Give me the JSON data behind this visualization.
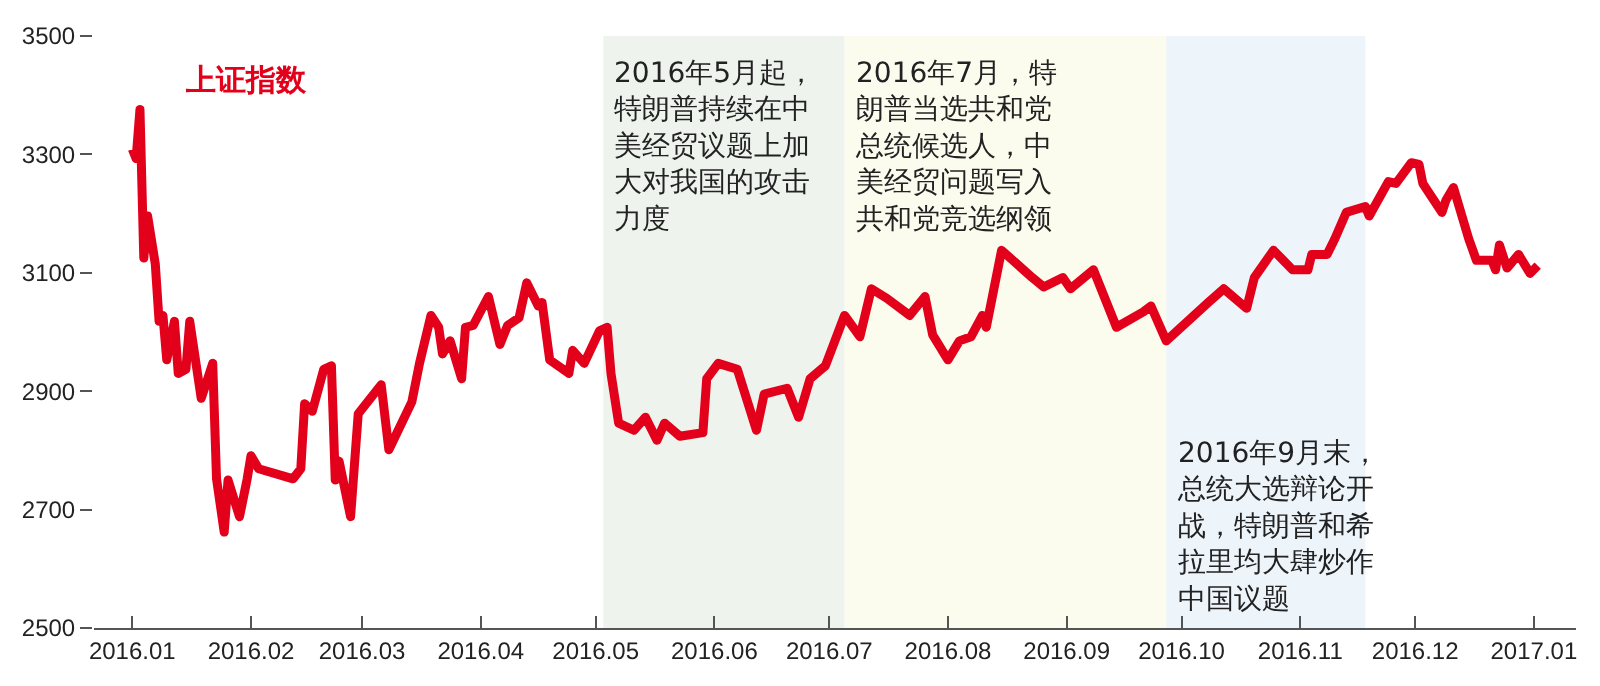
{
  "chart_data": {
    "type": "line",
    "x": [
      "2016-01-01",
      "2016-01-02",
      "2016-01-03",
      "2016-01-04",
      "2016-01-05",
      "2016-01-07",
      "2016-01-08",
      "2016-01-09",
      "2016-01-10",
      "2016-01-12",
      "2016-01-13",
      "2016-01-15",
      "2016-01-16",
      "2016-01-19",
      "2016-01-22",
      "2016-01-23",
      "2016-01-25",
      "2016-01-26",
      "2016-01-29",
      "2016-01-31",
      "2016-02-01",
      "2016-02-03",
      "2016-02-12",
      "2016-02-14",
      "2016-02-15",
      "2016-02-17",
      "2016-02-20",
      "2016-02-22",
      "2016-02-23",
      "2016-02-24",
      "2016-02-27",
      "2016-02-29",
      "2016-03-06",
      "2016-03-08",
      "2016-03-14",
      "2016-03-16",
      "2016-03-19",
      "2016-03-21",
      "2016-03-22",
      "2016-03-24",
      "2016-03-27",
      "2016-03-28",
      "2016-03-30",
      "2016-04-03",
      "2016-04-06",
      "2016-04-08",
      "2016-04-11",
      "2016-04-13",
      "2016-04-16",
      "2016-04-17",
      "2016-04-19",
      "2016-04-24",
      "2016-04-25",
      "2016-04-28",
      "2016-05-02",
      "2016-05-04",
      "2016-05-05",
      "2016-05-07",
      "2016-05-11",
      "2016-05-14",
      "2016-05-17",
      "2016-05-19",
      "2016-05-23",
      "2016-05-29",
      "2016-05-30",
      "2016-06-02",
      "2016-06-07",
      "2016-06-12",
      "2016-06-14",
      "2016-06-20",
      "2016-06-23",
      "2016-06-26",
      "2016-06-30",
      "2016-07-05",
      "2016-07-09",
      "2016-07-12",
      "2016-07-16",
      "2016-07-22",
      "2016-07-26",
      "2016-07-28",
      "2016-08-01",
      "2016-08-04",
      "2016-08-07",
      "2016-08-10",
      "2016-08-11",
      "2016-08-15",
      "2016-08-19",
      "2016-08-23",
      "2016-08-26",
      "2016-08-31",
      "2016-09-02",
      "2016-09-08",
      "2016-09-14",
      "2016-09-21",
      "2016-09-23",
      "2016-09-27",
      "2016-10-08",
      "2016-10-12",
      "2016-10-18",
      "2016-10-20",
      "2016-10-25",
      "2016-10-30",
      "2016-11-03",
      "2016-11-04",
      "2016-11-08",
      "2016-11-10",
      "2016-11-13",
      "2016-11-18",
      "2016-11-19",
      "2016-11-24",
      "2016-11-26",
      "2016-11-30",
      "2016-12-02",
      "2016-12-03",
      "2016-12-08",
      "2016-12-09",
      "2016-12-11",
      "2016-12-15",
      "2016-12-17",
      "2016-12-21",
      "2016-12-22",
      "2016-12-23",
      "2016-12-25",
      "2016-12-28",
      "2016-12-31",
      "2017-01-02"
    ],
    "series": [
      {
        "name": "上证指数",
        "color": "#e3001b",
        "values": [
          3309,
          3293,
          3376,
          3125,
          3196,
          3115,
          3018,
          3028,
          2953,
          3018,
          2930,
          2937,
          3018,
          2888,
          2947,
          2752,
          2662,
          2750,
          2688,
          2752,
          2791,
          2769,
          2752,
          2769,
          2879,
          2866,
          2937,
          2943,
          2750,
          2782,
          2688,
          2862,
          2911,
          2801,
          2882,
          2947,
          3028,
          3008,
          2963,
          2985,
          2921,
          3008,
          3011,
          3060,
          2979,
          3011,
          3024,
          3083,
          3044,
          3050,
          2953,
          2930,
          2969,
          2947,
          3002,
          3008,
          2930,
          2846,
          2834,
          2856,
          2817,
          2846,
          2824,
          2830,
          2921,
          2947,
          2937,
          2834,
          2895,
          2905,
          2856,
          2921,
          2943,
          3028,
          2992,
          3073,
          3057,
          3028,
          3060,
          2995,
          2953,
          2985,
          2992,
          3028,
          3008,
          3138,
          3115,
          3092,
          3076,
          3092,
          3073,
          3105,
          3008,
          3034,
          3044,
          2985,
          3050,
          3073,
          3040,
          3092,
          3138,
          3105,
          3105,
          3131,
          3131,
          3157,
          3202,
          3212,
          3196,
          3254,
          3251,
          3286,
          3283,
          3251,
          3202,
          3222,
          3244,
          3157,
          3121,
          3121,
          3105,
          3147,
          3108,
          3131,
          3099,
          3112
        ]
      }
    ],
    "xlim": [
      "2015-12-22",
      "2017-01-12"
    ],
    "xticks": [
      {
        "value": "2016-01-01",
        "label": "2016.01"
      },
      {
        "value": "2016-02-01",
        "label": "2016.02"
      },
      {
        "value": "2016-03-01",
        "label": "2016.03"
      },
      {
        "value": "2016-04-01",
        "label": "2016.04"
      },
      {
        "value": "2016-05-01",
        "label": "2016.05"
      },
      {
        "value": "2016-06-01",
        "label": "2016.06"
      },
      {
        "value": "2016-07-01",
        "label": "2016.07"
      },
      {
        "value": "2016-08-01",
        "label": "2016.08"
      },
      {
        "value": "2016-09-01",
        "label": "2016.09"
      },
      {
        "value": "2016-10-01",
        "label": "2016.10"
      },
      {
        "value": "2016-11-01",
        "label": "2016.11"
      },
      {
        "value": "2016-12-01",
        "label": "2016.12"
      },
      {
        "value": "2017-01-01",
        "label": "2017.01"
      }
    ],
    "ylim": [
      2500,
      3500
    ],
    "yticks": [
      2500,
      2700,
      2900,
      3100,
      3300,
      3500
    ],
    "bands": [
      {
        "axis": "x",
        "from": "2016-05-03",
        "to": "2016-07-05",
        "label": "2016年5月起，特朗普持续在中美经贸议题上加大对我国的攻击力度",
        "color": "#eef3ee"
      },
      {
        "axis": "x",
        "from": "2016-07-05",
        "to": "2016-09-27",
        "label": "2016年7月，特朗普当选共和党总统候选人，中美经贸问题写入共和党竞选纲领",
        "color": "#fbfbee"
      },
      {
        "axis": "x",
        "from": "2016-09-27",
        "to": "2016-11-18",
        "label": "2016年9月末，总统大选辩论开战，特朗普和希拉里均大肆炒作中国议题",
        "color": "#eef5fa"
      }
    ],
    "grid": false,
    "legend": false,
    "marker": "none",
    "line_style": "solid"
  }
}
